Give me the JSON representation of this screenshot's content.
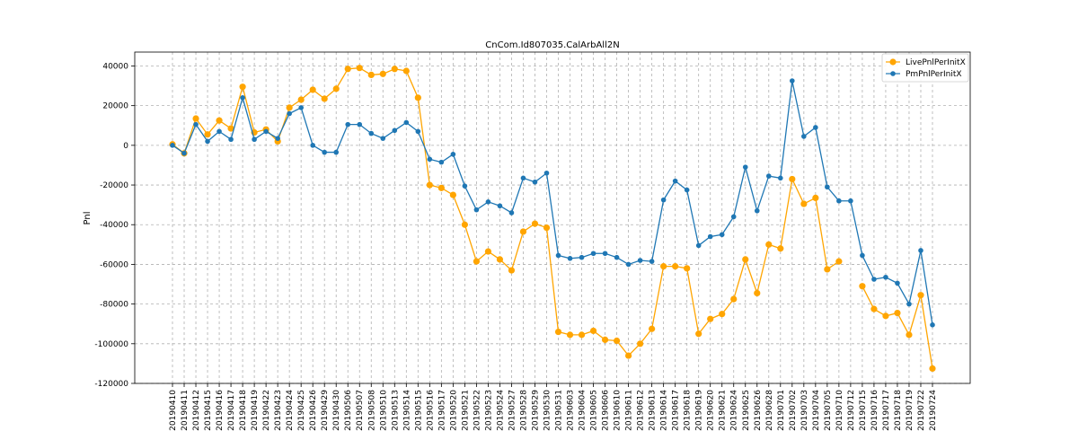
{
  "chart_data": {
    "type": "line",
    "title": "CnCom.Id807035.CalArbAll2N",
    "xlabel": "",
    "ylabel": "Pnl",
    "ylim": [
      -120000,
      47000
    ],
    "yticks": [
      -120000,
      -100000,
      -80000,
      -60000,
      -40000,
      -20000,
      0,
      20000,
      40000
    ],
    "grid": true,
    "legend_position": "top-right",
    "categories": [
      "20190410",
      "20190411",
      "20190412",
      "20190415",
      "20190416",
      "20190417",
      "20190418",
      "20190419",
      "20190422",
      "20190423",
      "20190424",
      "20190425",
      "20190426",
      "20190429",
      "20190430",
      "20190506",
      "20190507",
      "20190508",
      "20190510",
      "20190513",
      "20190514",
      "20190515",
      "20190516",
      "20190517",
      "20190520",
      "20190521",
      "20190522",
      "20190523",
      "20190524",
      "20190527",
      "20190528",
      "20190529",
      "20190530",
      "20190531",
      "20190603",
      "20190604",
      "20190605",
      "20190606",
      "20190610",
      "20190611",
      "20190612",
      "20190613",
      "20190614",
      "20190617",
      "20190618",
      "20190619",
      "20190620",
      "20190621",
      "20190624",
      "20190625",
      "20190626",
      "20190628",
      "20190701",
      "20190702",
      "20190703",
      "20190704",
      "20190705",
      "20190710",
      "20190712",
      "20190715",
      "20190716",
      "20190717",
      "20190718",
      "20190719",
      "20190722",
      "20190724"
    ],
    "series": [
      {
        "name": "LivePnlPerInitX",
        "color": "#FFA500",
        "values": [
          500,
          -4000,
          13500,
          5500,
          12500,
          8500,
          29500,
          6500,
          8000,
          2000,
          19000,
          23000,
          28000,
          23500,
          28500,
          38500,
          39000,
          35500,
          36000,
          38500,
          37500,
          24000,
          -20000,
          -21500,
          -25000,
          -40000,
          -58500,
          -53500,
          -57500,
          -63000,
          -43500,
          -39500,
          -41500,
          -94000,
          -95500,
          -95500,
          -93500,
          -98000,
          -98500,
          -106000,
          -100000,
          -92500,
          -61000,
          -61000,
          -62000,
          -95000,
          -87500,
          -85000,
          -77500,
          -57500,
          -74500,
          -50000,
          -52000,
          -17000,
          -29500,
          -26500,
          -62500,
          -58500,
          null,
          -71000,
          -82500,
          -86000,
          -84500,
          -95500,
          -75500,
          -112500
        ]
      },
      {
        "name": "PmPnlPerInitX",
        "color": "#1F77B4",
        "values": [
          0,
          -4000,
          10500,
          2000,
          7000,
          3000,
          24000,
          3000,
          7000,
          3500,
          16000,
          19000,
          0,
          -3500,
          -3500,
          10500,
          10500,
          6000,
          3500,
          7500,
          11500,
          7000,
          -7000,
          -8500,
          -4500,
          -20500,
          -32500,
          -28500,
          -30500,
          -34000,
          -16500,
          -18500,
          -14000,
          -55500,
          -57000,
          -56500,
          -54500,
          -54500,
          -56500,
          -60000,
          -58000,
          -58500,
          -27500,
          -18000,
          -22500,
          -50500,
          -46000,
          -45000,
          -36000,
          -11000,
          -33000,
          -15500,
          -16500,
          32500,
          4500,
          9000,
          -21000,
          -28000,
          -28000,
          -55500,
          -67500,
          -66500,
          -69500,
          -80000,
          -53000,
          -90500
        ]
      }
    ]
  }
}
